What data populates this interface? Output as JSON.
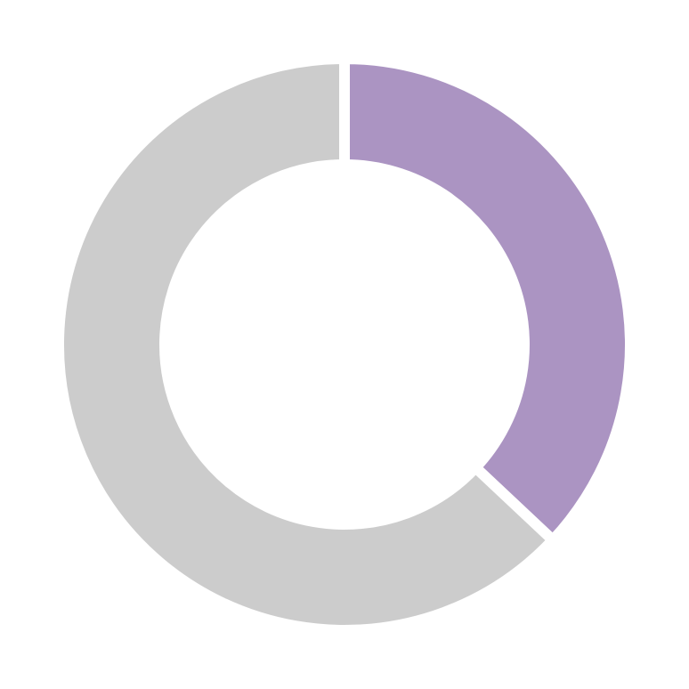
{
  "chart_data": {
    "type": "donut",
    "values": [
      37,
      63
    ],
    "colors": [
      "#ab94c2",
      "#cccccc"
    ]
  }
}
